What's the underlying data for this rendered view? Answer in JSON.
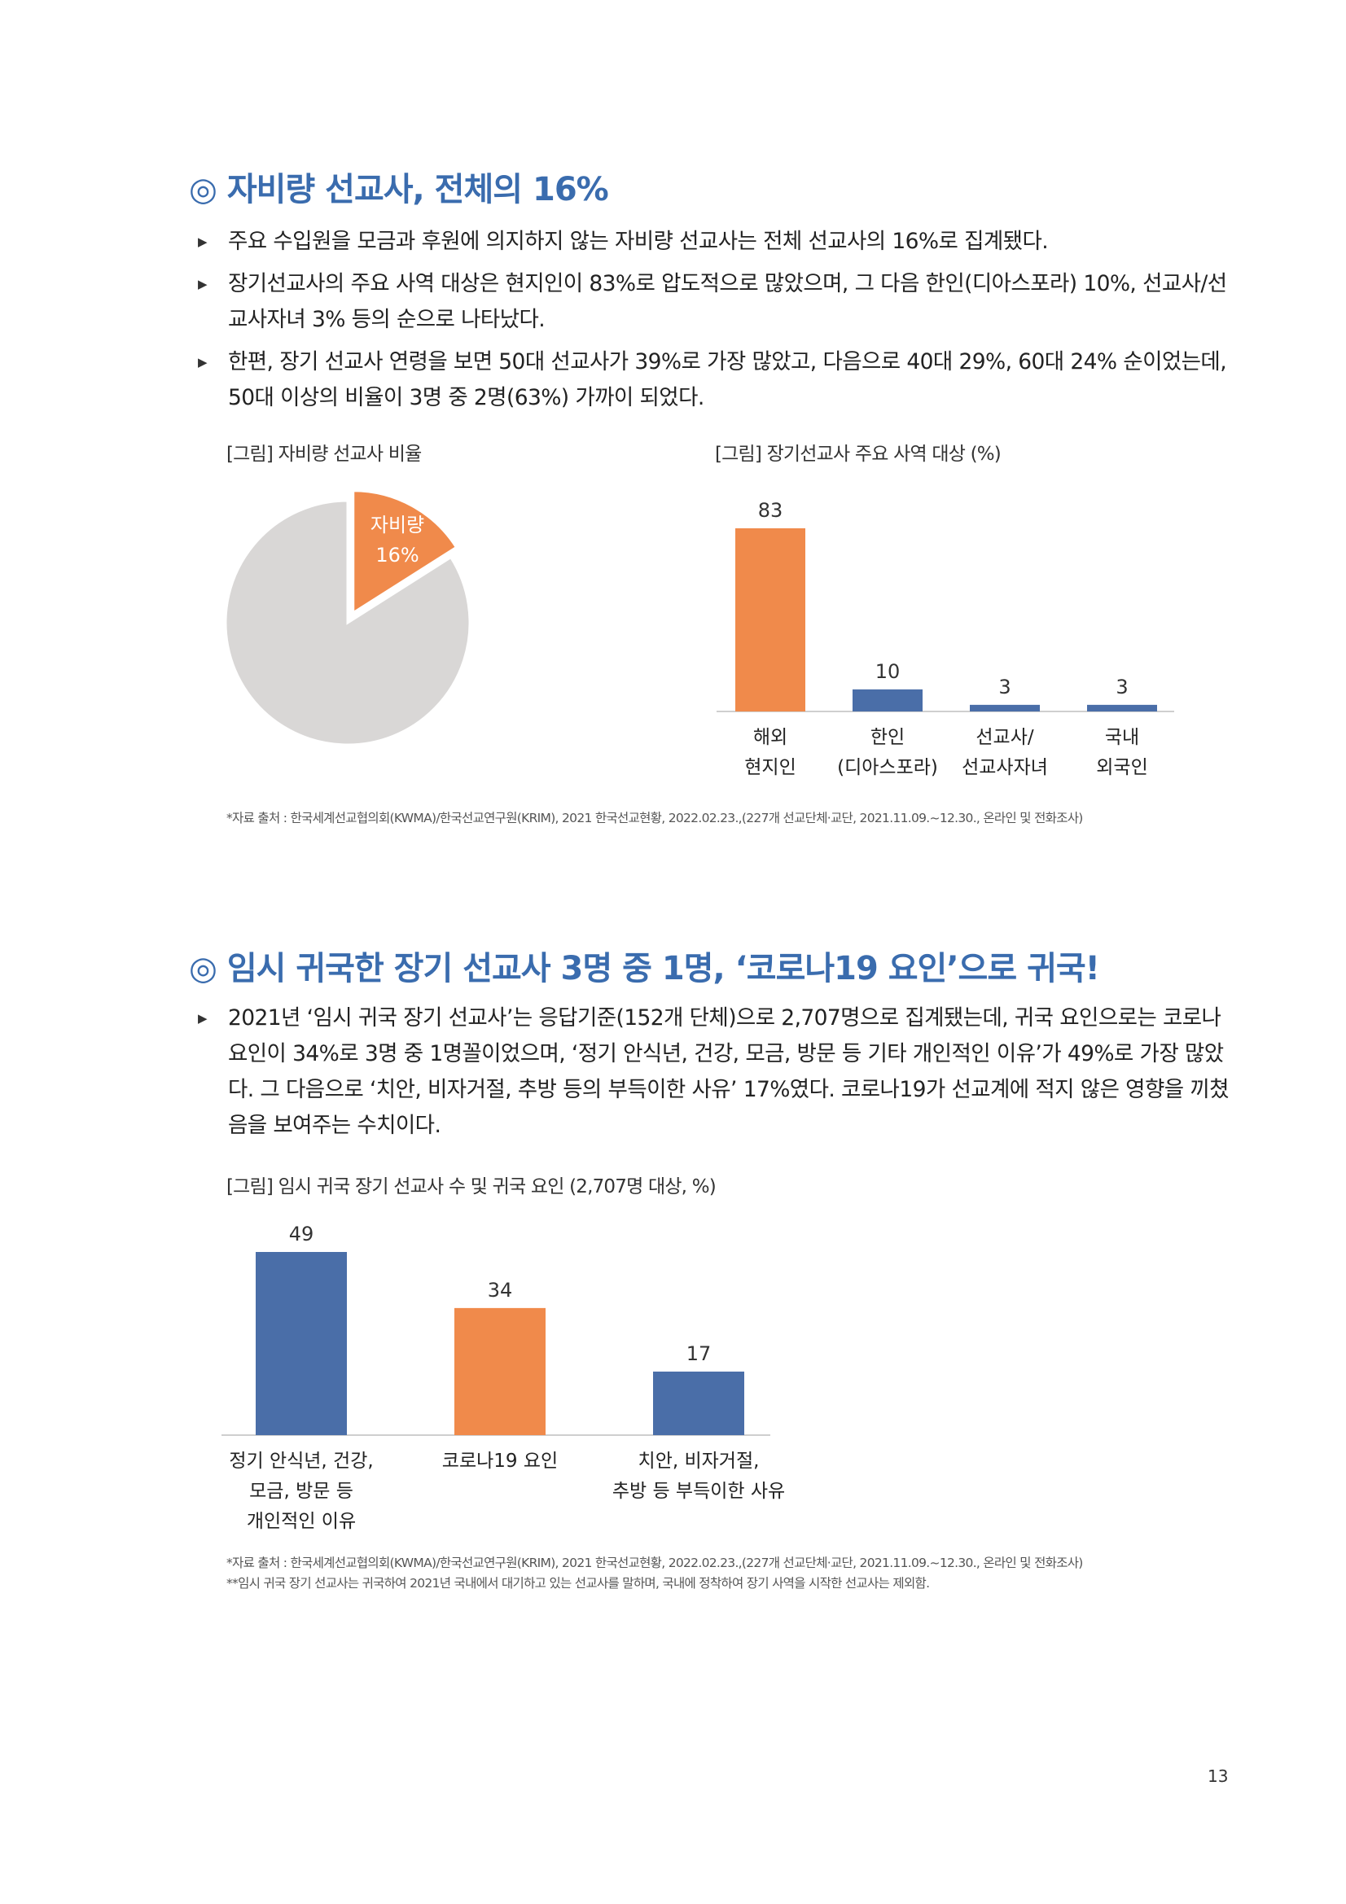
{
  "section1": {
    "title": "◎ 자비량 선교사, 전체의 16%",
    "bullets": [
      "주요 수입원을 모금과 후원에 의지하지 않는 자비량 선교사는 전체 선교사의 16%로 집계됐다.",
      "장기선교사의 주요 사역 대상은 현지인이 83%로 압도적으로 많았으며, 그 다음 한인(디아스포라) 10%, 선교사/선교사자녀 3% 등의 순으로 나타났다.",
      "한편, 장기 선교사 연령을 보면 50대 선교사가 39%로 가장 많았고, 다음으로 40대 29%, 60대 24% 순이었는데, 50대 이상의 비율이 3명 중 2명(63%) 가까이 되었다."
    ],
    "pie_caption": "[그림] 자비량 선교사 비율",
    "bar_caption": "[그림] 장기선교사 주요 사역 대상 (%)",
    "source": "*자료 출처 : 한국세계선교협의회(KWMA)/한국선교연구원(KRIM), 2021 한국선교현황, 2022.02.23.,(227개 선교단체·교단, 2021.11.09.~12.30., 온라인 및 전화조사)"
  },
  "section2": {
    "title": "◎ 임시 귀국한 장기 선교사 3명 중 1명, ‘코로나19 요인’으로 귀국!",
    "bullets": [
      "2021년 ‘임시 귀국 장기 선교사’는 응답기준(152개 단체)으로 2,707명으로 집계됐는데, 귀국 요인으로는 코로나 요인이 34%로 3명 중 1명꼴이었으며, ‘정기 안식년, 건강, 모금, 방문 등 기타 개인적인 이유’가 49%로 가장 많았다. 그 다음으로 ‘치안, 비자거절, 추방 등의 부득이한 사유’ 17%였다. 코로나19가 선교계에 적지 않은 영향을 끼쳤음을 보여주는 수치이다."
    ],
    "bar_caption": "[그림] 임시 귀국 장기 선교사 수 및 귀국 요인 (2,707명 대상,  %)",
    "source_lines": [
      "*자료 출처 : 한국세계선교협의회(KWMA)/한국선교연구원(KRIM), 2021 한국선교현황, 2022.02.23.,(227개 선교단체·교단, 2021.11.09.~12.30., 온라인 및 전화조사)",
      "**임시 귀국 장기 선교사는 귀국하여 2021년 국내에서 대기하고 있는 선교사를 말하며, 국내에 정착하여 장기 사역을 시작한 선교사는 제외함."
    ]
  },
  "page_number": "13",
  "colors": {
    "accent": "#3a6cae",
    "orange": "#f08a4b",
    "blue": "#4a6ea8",
    "gray": "#d9d7d6"
  },
  "chart_data": [
    {
      "type": "pie",
      "categories": [
        "자비량",
        ""
      ],
      "values": [
        16,
        84
      ],
      "labels": [
        [
          "자비량",
          "16%"
        ]
      ],
      "colors": [
        "#f08a4b",
        "#d9d7d6"
      ],
      "exploded": [
        true,
        false
      ]
    },
    {
      "type": "bar",
      "categories": [
        [
          "해외",
          "현지인"
        ],
        [
          "한인",
          "(디아스포라)"
        ],
        [
          "선교사/",
          "선교사자녀"
        ],
        [
          "국내",
          "외국인"
        ]
      ],
      "values": [
        83,
        10,
        3,
        3
      ],
      "colors": [
        "#f08a4b",
        "#4a6ea8",
        "#4a6ea8",
        "#4a6ea8"
      ],
      "ylim": [
        0,
        83
      ]
    },
    {
      "type": "bar",
      "categories": [
        [
          "정기 안식년, 건강,",
          "모금, 방문 등",
          "개인적인 이유"
        ],
        [
          "코로나19 요인"
        ],
        [
          "치안, 비자거절,",
          "추방 등 부득이한 사유"
        ]
      ],
      "values": [
        49,
        34,
        17
      ],
      "colors": [
        "#4a6ea8",
        "#f08a4b",
        "#4a6ea8"
      ],
      "ylim": [
        0,
        49
      ]
    }
  ]
}
